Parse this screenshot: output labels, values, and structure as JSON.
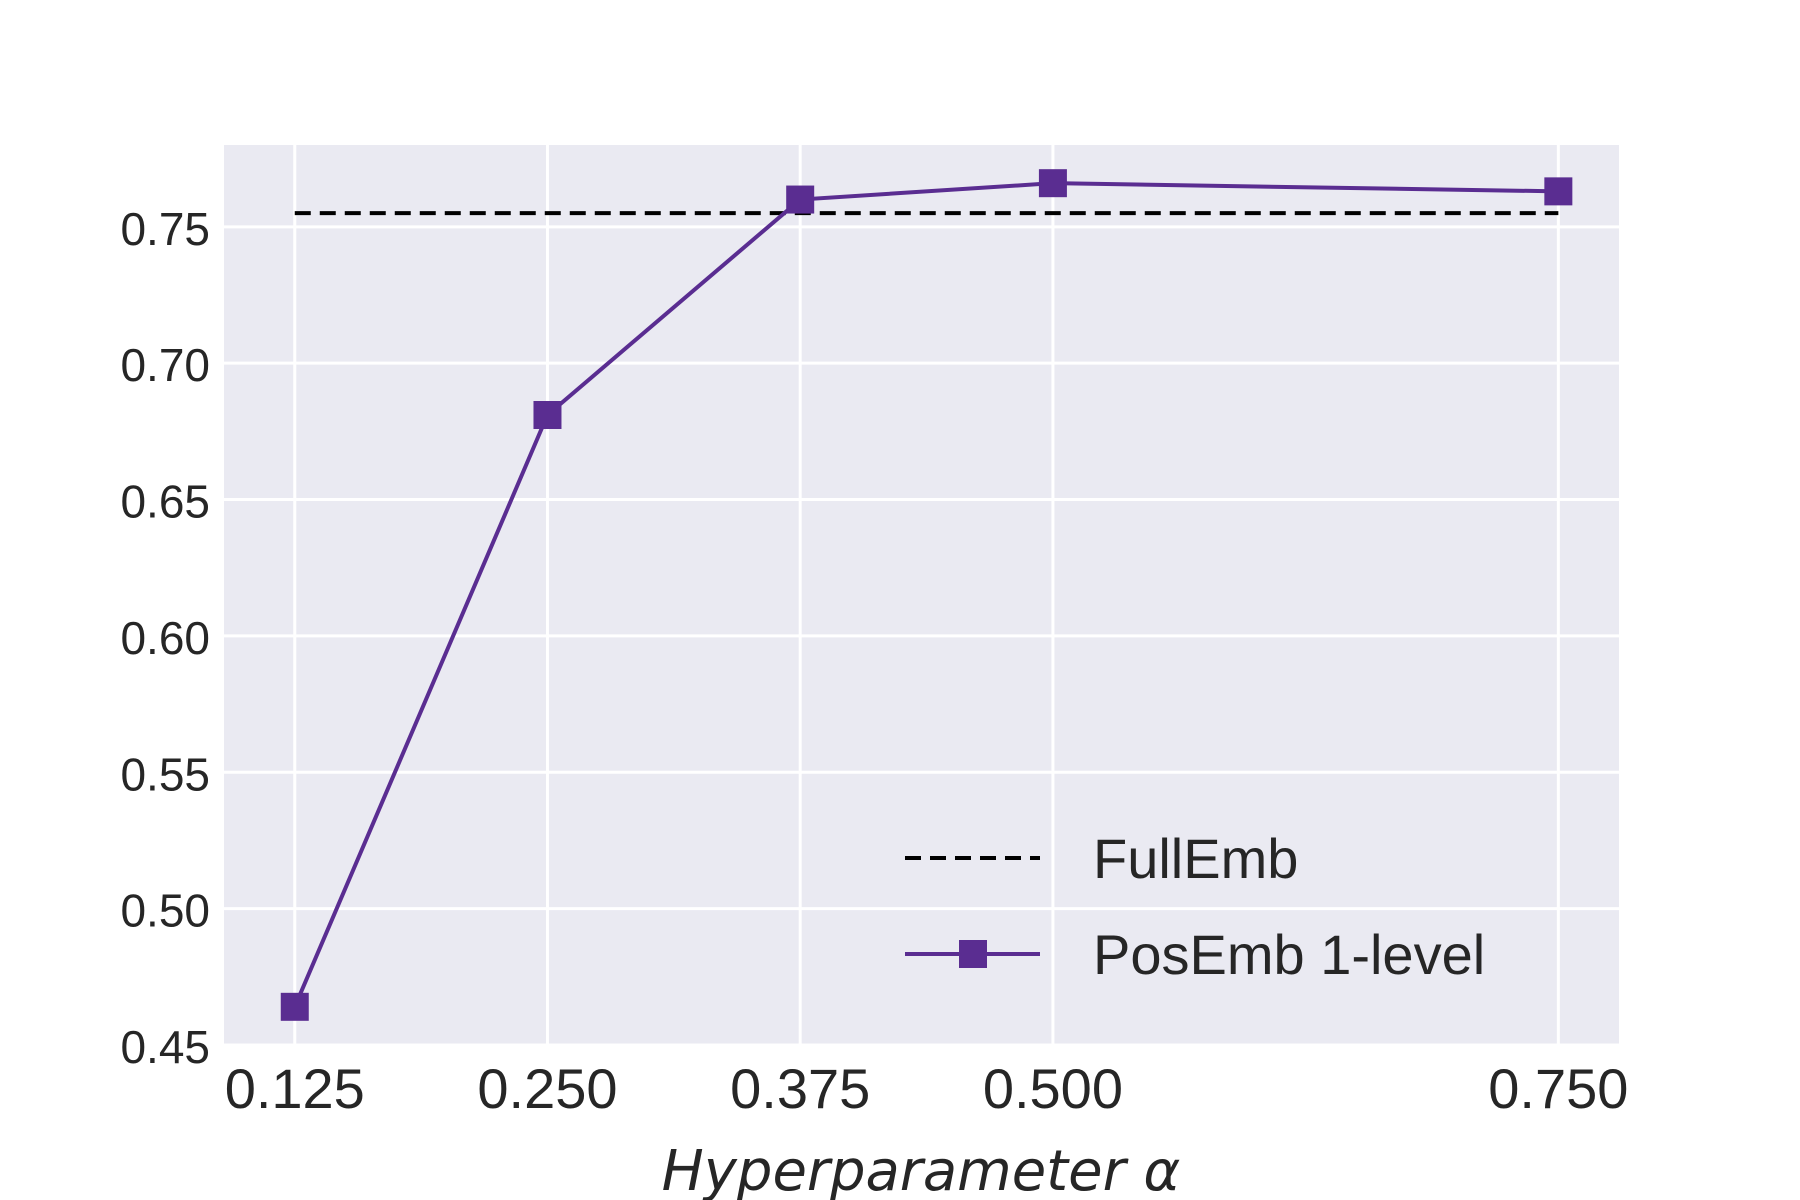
{
  "chart_data": {
    "type": "line",
    "title": "",
    "xlabel": "Hyperparameter α",
    "ylabel": "",
    "x": [
      0.125,
      0.25,
      0.375,
      0.5,
      0.75
    ],
    "x_tick_labels": [
      "0.125",
      "0.250",
      "0.375",
      "0.500",
      "0.750"
    ],
    "xlim": [
      0.09,
      0.78
    ],
    "ylim": [
      0.45,
      0.78
    ],
    "y_ticks": [
      0.45,
      0.5,
      0.55,
      0.6,
      0.65,
      0.7,
      0.75
    ],
    "y_tick_labels": [
      "0.45",
      "0.50",
      "0.55",
      "0.60",
      "0.65",
      "0.70",
      "0.75"
    ],
    "grid": true,
    "legend_position": "lower-right",
    "series": [
      {
        "name": "FullEmb",
        "style": "dashed",
        "color": "#000000",
        "values": [
          0.755,
          0.755,
          0.755,
          0.755,
          0.755
        ]
      },
      {
        "name": "PosEmb 1-level",
        "style": "solid-square-markers",
        "color": "#5a2d91",
        "values": [
          0.464,
          0.681,
          0.76,
          0.766,
          0.763
        ]
      }
    ]
  },
  "colors": {
    "plot_background": "#eaeaf2",
    "grid": "#ffffff",
    "text": "#262626"
  }
}
